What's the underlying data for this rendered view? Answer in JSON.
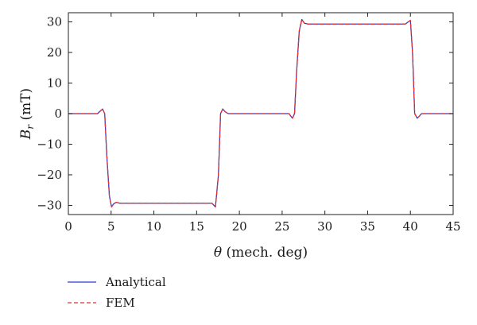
{
  "chart_data": {
    "type": "line",
    "xlabel_symbol": "θ",
    "xlabel_text": " (mech. deg)",
    "ylabel_symbol": "B",
    "ylabel_sub": "r",
    "ylabel_text": " (mT)",
    "xlim": [
      0,
      45
    ],
    "ylim": [
      -33,
      33
    ],
    "xticks": [
      0,
      5,
      10,
      15,
      20,
      25,
      30,
      35,
      40,
      45
    ],
    "yticks": [
      -30,
      -20,
      -10,
      0,
      10,
      20,
      30
    ],
    "grid": false,
    "legend_position": "bottom-left",
    "series": [
      {
        "name": "Analytical",
        "color": "#2b3ccf",
        "dash": "solid",
        "x": [
          0,
          3.4,
          4.0,
          4.25,
          4.5,
          4.8,
          5.05,
          5.3,
          5.6,
          6.0,
          16.8,
          17.2,
          17.55,
          17.8,
          18.05,
          18.35,
          18.7,
          19.3,
          25.8,
          26.2,
          26.45,
          26.7,
          27.0,
          27.3,
          27.6,
          28.0,
          39.4,
          40.0,
          40.25,
          40.5,
          40.8,
          41.05,
          41.3,
          41.6,
          42.0,
          45
        ],
        "y": [
          0,
          0,
          1.5,
          0,
          -14,
          -27,
          -30.5,
          -29.5,
          -29,
          -29.3,
          -29.3,
          -30.5,
          -20,
          0,
          1.5,
          0.6,
          0,
          0,
          0,
          -1.5,
          0,
          14,
          27,
          30.8,
          29.6,
          29.3,
          29.3,
          30.5,
          20,
          0,
          -1.5,
          -0.8,
          0,
          0,
          0,
          0
        ]
      },
      {
        "name": "FEM",
        "color": "#e8332b",
        "dash": "dashed",
        "x": [
          0,
          3.4,
          4.0,
          4.25,
          4.5,
          4.8,
          5.05,
          5.3,
          5.6,
          6.0,
          16.8,
          17.2,
          17.55,
          17.8,
          18.05,
          18.35,
          18.7,
          19.3,
          25.8,
          26.2,
          26.45,
          26.7,
          27.0,
          27.3,
          27.6,
          28.0,
          39.4,
          40.0,
          40.25,
          40.5,
          40.8,
          41.05,
          41.3,
          41.6,
          42.0,
          45
        ],
        "y": [
          0,
          0,
          1.5,
          0,
          -14,
          -27,
          -30.5,
          -29.5,
          -29,
          -29.3,
          -29.3,
          -30.5,
          -20,
          0,
          1.5,
          0.6,
          0,
          0,
          0,
          -1.5,
          0,
          14,
          27,
          30.8,
          29.6,
          29.3,
          29.3,
          30.5,
          20,
          0,
          -1.5,
          -0.8,
          0,
          0,
          0,
          0
        ]
      }
    ]
  }
}
